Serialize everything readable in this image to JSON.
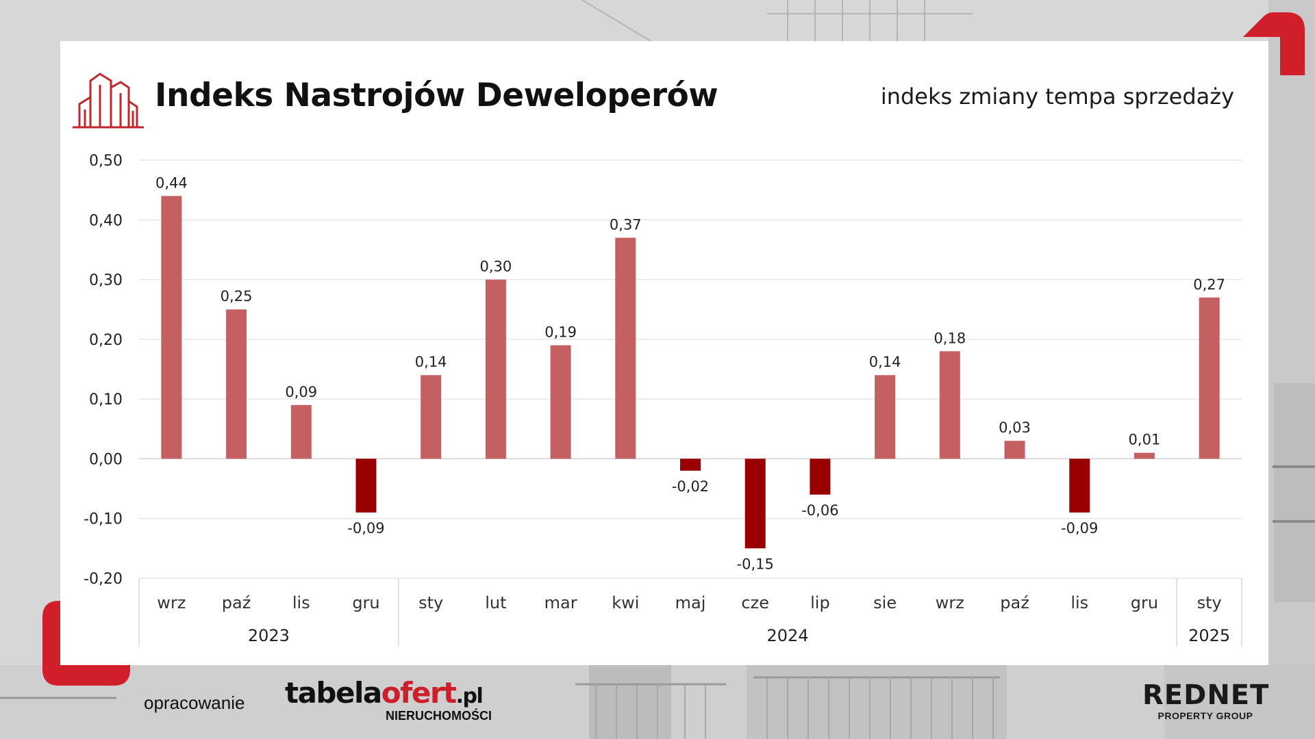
{
  "header": {
    "title": "Indeks Nastrojów Deweloperów",
    "subtitle": "indeks zmiany tempa sprzedaży"
  },
  "footer": {
    "label": "opracowanie",
    "tabela_main": "tabela",
    "tabela_accent": "ofert",
    "tabela_tld": ".pl",
    "tabela_sub": "NIERUCHOMOŚCI",
    "rednet_main": "REDNET",
    "rednet_sub": "PROPERTY GROUP"
  },
  "icons": {
    "header_logo": "buildings-icon"
  },
  "colors": {
    "positive_bar": "#c46062",
    "negative_bar": "#990000",
    "accent_red": "#d01f2a",
    "gridline": "#e6e6e6"
  },
  "chart_data": {
    "type": "bar",
    "categories": [
      "wrz",
      "paź",
      "lis",
      "gru",
      "sty",
      "lut",
      "mar",
      "kwi",
      "maj",
      "cze",
      "lip",
      "sie",
      "wrz",
      "paź",
      "lis",
      "gru",
      "sty"
    ],
    "values": [
      0.44,
      0.25,
      0.09,
      -0.09,
      0.14,
      0.3,
      0.19,
      0.37,
      -0.02,
      -0.15,
      -0.06,
      0.14,
      0.18,
      0.03,
      -0.09,
      0.01,
      0.27
    ],
    "data_labels": [
      "0,44",
      "0,25",
      "0,09",
      "-0,09",
      "0,14",
      "0,30",
      "0,19",
      "0,37",
      "-0,02",
      "-0,15",
      "-0,06",
      "0,14",
      "0,18",
      "0,03",
      "-0,09",
      "0,01",
      "0,27"
    ],
    "year_groups": [
      {
        "label": "2023",
        "count": 4
      },
      {
        "label": "2024",
        "count": 12
      },
      {
        "label": "2025",
        "count": 1
      }
    ],
    "ylim": [
      -0.2,
      0.5
    ],
    "y_ticks": [
      0.5,
      0.4,
      0.3,
      0.2,
      0.1,
      0.0,
      -0.1,
      -0.2
    ],
    "y_tick_labels": [
      "0,50",
      "0,40",
      "0,30",
      "0,20",
      "0,10",
      "0,00",
      "-0,10",
      "-0,20"
    ],
    "grid": true,
    "xlabel": "",
    "ylabel": ""
  }
}
